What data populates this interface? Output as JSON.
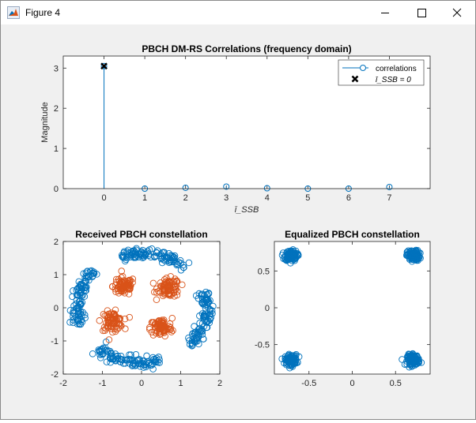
{
  "window": {
    "title": "Figure 4",
    "icon": "matlab-figure-icon",
    "controls": [
      "minimize-icon",
      "maximize-icon",
      "close-icon"
    ]
  },
  "chart_data": [
    {
      "type": "stem",
      "title": "PBCH DM-RS Correlations (frequency domain)",
      "xlabel": "ī_SSB",
      "ylabel": "Magnitude",
      "xlim": [
        -1,
        8
      ],
      "ylim": [
        0,
        3.3
      ],
      "xticks": [
        "0",
        "1",
        "2",
        "3",
        "4",
        "5",
        "6",
        "7"
      ],
      "yticks": [
        "0",
        "1",
        "2",
        "3"
      ],
      "x": [
        0,
        1,
        2,
        3,
        4,
        5,
        6,
        7
      ],
      "values": [
        3.05,
        0.0,
        0.02,
        0.05,
        0.01,
        0.0,
        0.0,
        0.04
      ],
      "series_color": "#0072bd",
      "marker": {
        "label": "ī_SSB = 0",
        "x": 0,
        "y": 3.05,
        "color": "#000000"
      },
      "legend": {
        "position": "top-right",
        "entries": [
          "correlations",
          "ī_SSB = 0"
        ]
      },
      "grid": false
    },
    {
      "type": "scatter",
      "title": "Received PBCH constellation",
      "xlim": [
        -2,
        2
      ],
      "ylim": [
        -2,
        2
      ],
      "xticks": [
        "-2",
        "-1",
        "0",
        "1",
        "2"
      ],
      "yticks": [
        "-2",
        "-1",
        "0",
        "1",
        "2"
      ],
      "series": [
        {
          "color": "#0072bd",
          "shape": "rotated QPSK arcs, radius ~1.65",
          "arc_centers_deg": [
            78,
            168,
            258,
            348
          ],
          "radius": 1.65,
          "arc_span_deg": 60,
          "count_per_arc": 110
        },
        {
          "color": "#d95319",
          "shape": "QPSK clusters, radius ~0.9",
          "centers": [
            [
              -0.45,
              0.65
            ],
            [
              0.7,
              0.6
            ],
            [
              -0.75,
              -0.4
            ],
            [
              0.5,
              -0.6
            ]
          ],
          "spread": 0.14,
          "count_per_cluster": 80
        }
      ],
      "grid": false
    },
    {
      "type": "scatter",
      "title": "Equalized PBCH constellation",
      "xlim": [
        -0.9,
        0.9
      ],
      "ylim": [
        -0.9,
        0.9
      ],
      "xticks": [
        "-0.5",
        "0",
        "0.5"
      ],
      "yticks": [
        "-0.5",
        "0",
        "0.5"
      ],
      "series": [
        {
          "color": "#0072bd",
          "centers": [
            [
              -0.707,
              0.707
            ],
            [
              0.707,
              0.707
            ],
            [
              -0.707,
              -0.707
            ],
            [
              0.707,
              -0.707
            ]
          ],
          "spread": 0.035,
          "count_per_cluster": 120
        }
      ],
      "grid": false
    }
  ]
}
